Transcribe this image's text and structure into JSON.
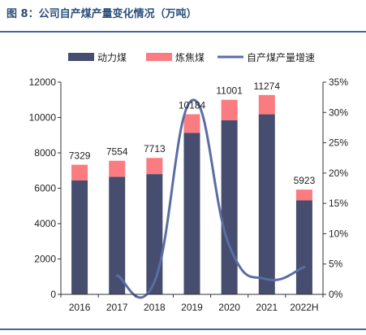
{
  "title": "图 8：公司自产煤产量变化情况（万吨）",
  "colors": {
    "thermal": "#464d6e",
    "coking": "#fb7c80",
    "growth": "#5a6ea3",
    "rule": "#3e6a9a"
  },
  "chart_data": {
    "type": "bar",
    "stacked": true,
    "categories": [
      "2016",
      "2017",
      "2018",
      "2019",
      "2020",
      "2021",
      "2022H"
    ],
    "series": [
      {
        "name": "动力煤",
        "kind": "bar",
        "axis": "left",
        "values": [
          6450,
          6650,
          6800,
          9130,
          9850,
          10180,
          5310
        ]
      },
      {
        "name": "炼焦煤",
        "kind": "bar",
        "axis": "left",
        "values": [
          879,
          904,
          913,
          1054,
          1151,
          1094,
          613
        ]
      },
      {
        "name": "自产煤产量增速",
        "kind": "line",
        "axis": "right",
        "unit": "%",
        "values": [
          null,
          3.1,
          2.1,
          32.0,
          8.0,
          2.5,
          4.5
        ]
      }
    ],
    "totals": [
      7329,
      7554,
      7713,
      10184,
      11001,
      11274,
      5923
    ],
    "total_labels": [
      "7329",
      "7554",
      "7713",
      "10184",
      "11001",
      "11274",
      "5923"
    ],
    "ylim": [
      0,
      12000
    ],
    "yticks": [
      "0",
      "2000",
      "4000",
      "6000",
      "8000",
      "10000",
      "12000"
    ],
    "y2lim": [
      0,
      35
    ],
    "y2ticks": [
      "0%",
      "5%",
      "10%",
      "15%",
      "20%",
      "25%",
      "30%",
      "35%"
    ],
    "legend": {
      "position": "top",
      "entries": [
        "动力煤",
        "炼焦煤",
        "自产煤产量增速"
      ]
    },
    "grid": false
  }
}
